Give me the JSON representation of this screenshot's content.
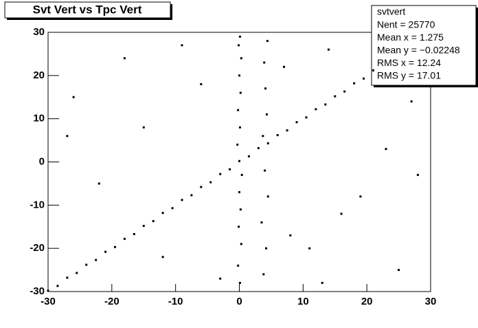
{
  "chart_data": {
    "type": "scatter",
    "title": "Svt Vert vs Tpc Vert",
    "stats": {
      "name": "svtvert",
      "lines": [
        "Nent = 25770",
        "Mean x =  1.275",
        "Mean y = −0.02248",
        "RMS x =  12.24",
        "RMS y =  17.01"
      ]
    },
    "color": "#000000",
    "xlim": [
      -30,
      30
    ],
    "ylim": [
      -30,
      30
    ],
    "xticks": [
      -30,
      -20,
      -10,
      0,
      10,
      20,
      30
    ],
    "yticks": [
      -30,
      -20,
      -10,
      0,
      10,
      20,
      30
    ],
    "x": [
      -30,
      -28.5,
      -27,
      -25.5,
      -24,
      -22.5,
      -21,
      -19.5,
      -18,
      -16.5,
      -15,
      -13.5,
      -12,
      -10.5,
      -9,
      -7.5,
      -6,
      -4.5,
      -3,
      -1.5,
      0,
      1.5,
      3,
      4.5,
      6,
      7.5,
      9,
      10.5,
      12,
      13.5,
      15,
      16.5,
      18,
      19.5,
      21,
      0.1,
      -0.2,
      0.3,
      -0.1,
      0.2,
      0,
      0.4,
      -0.3,
      0.1,
      -0.2,
      0.2,
      0,
      0.3,
      -0.1,
      0.1,
      3.8,
      4.2,
      3.5,
      4.5,
      4,
      3.7,
      4.3,
      4.1,
      3.9,
      4.4,
      -26,
      -18,
      -12,
      -6,
      8,
      14,
      19,
      25,
      -22,
      -9,
      11,
      23,
      -15,
      16,
      27,
      -3,
      7,
      -27,
      13,
      28
    ],
    "values": [
      -29.8,
      -28.7,
      -26.8,
      -25.7,
      -23.8,
      -22.7,
      -20.8,
      -19.7,
      -17.8,
      -16.7,
      -14.8,
      -13.7,
      -11.8,
      -10.7,
      -8.8,
      -7.7,
      -5.8,
      -4.7,
      -2.8,
      -1.7,
      0.2,
      1.3,
      3.2,
      4.3,
      6.2,
      7.3,
      9.2,
      10.3,
      12.2,
      13.3,
      15.2,
      16.3,
      18.2,
      19.3,
      21.2,
      -28,
      -24,
      -19,
      -15,
      -11,
      -7,
      -3,
      4,
      8,
      12,
      16,
      20,
      24,
      27,
      29,
      -26,
      -20,
      -14,
      -8,
      -2,
      6,
      11,
      17,
      23,
      28,
      15,
      24,
      -22,
      18,
      -17,
      26,
      -8,
      -25,
      -5,
      27,
      -20,
      3,
      8,
      -12,
      14,
      -27,
      22,
      6,
      -28,
      -3
    ]
  }
}
